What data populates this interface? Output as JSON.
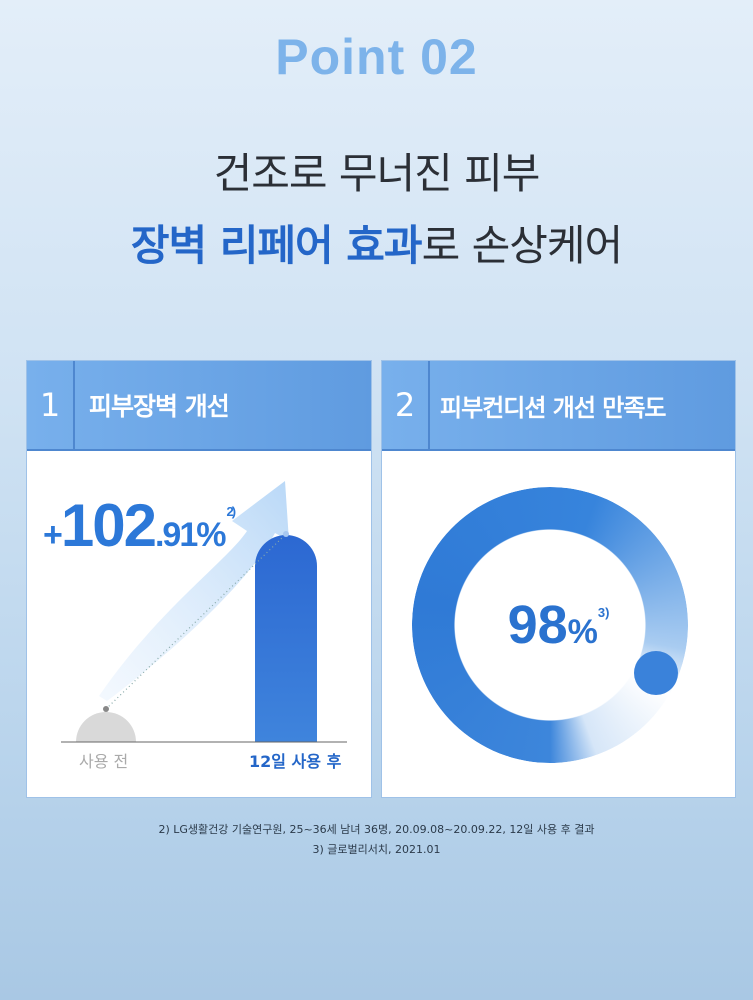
{
  "header": {
    "point": "Point 02",
    "line1": "건조로 무너진 피부",
    "line2_highlight": "장벽 리페어 효과",
    "line2_rest": "로 손상케어"
  },
  "panels": [
    {
      "number": "1",
      "title": "피부장벽 개선",
      "value_sign": "+",
      "value_int": "102",
      "value_dec": ".91%",
      "footnote_ref": "2)",
      "before_label": "사용 전",
      "after_label": "12일 사용 후"
    },
    {
      "number": "2",
      "title": "피부컨디션 개선 만족도",
      "value": "98",
      "unit": "%",
      "footnote_ref": "3)",
      "satisfaction_percent": 98
    }
  ],
  "footnotes": [
    "2) LG생활건강 기술연구원, 25~36세 남녀 36명, 20.09.08~20.09.22, 12일 사용 후 결과",
    "3) 글로벌리서치, 2021.01"
  ],
  "colors": {
    "accent": "#2466c8",
    "header_bar": "#6fa8e6",
    "before_bar": "#d9d9d9"
  }
}
